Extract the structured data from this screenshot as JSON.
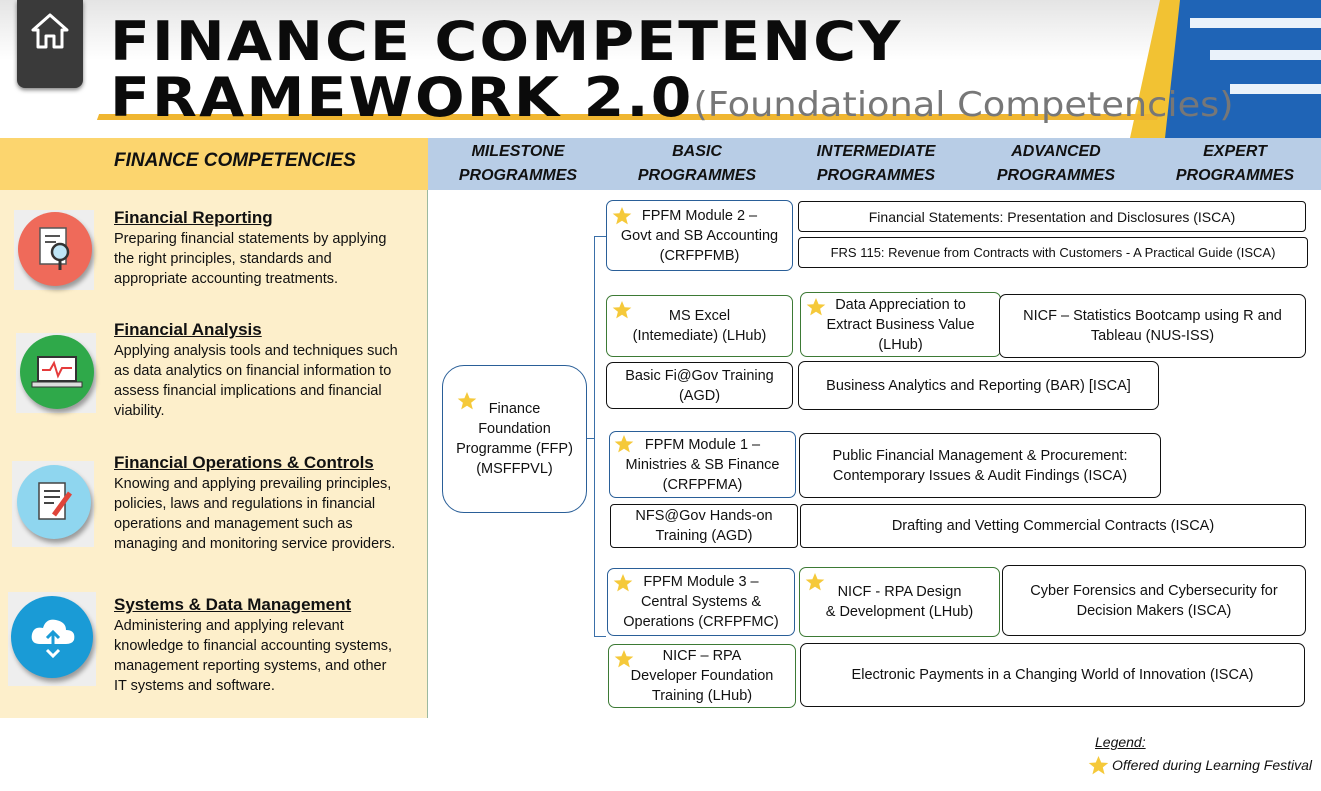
{
  "header": {
    "title_line1": "FINANCE COMPETENCY",
    "title_line2": "FRAMEWORK 2.0",
    "subtitle": "(Foundational Competencies)"
  },
  "columns": {
    "competencies": "FINANCE COMPETENCIES",
    "milestone": [
      "MILESTONE",
      "PROGRAMMES"
    ],
    "basic": [
      "BASIC",
      "PROGRAMMES"
    ],
    "intermediate": [
      "INTERMEDIATE",
      "PROGRAMMES"
    ],
    "advanced": [
      "ADVANCED",
      "PROGRAMMES"
    ],
    "expert": [
      "EXPERT",
      "PROGRAMMES"
    ]
  },
  "competencies": [
    {
      "title": "Financial Reporting",
      "lines": [
        "Preparing financial statements by applying",
        "the right principles, standards and",
        "appropriate accounting treatments."
      ],
      "icon": "report-magnifier-icon",
      "color": "#ef6a5a"
    },
    {
      "title": "Financial Analysis",
      "lines": [
        "Applying analysis tools and techniques such",
        "as data analytics on financial information to",
        "assess financial implications and financial",
        "viability."
      ],
      "icon": "laptop-chart-icon",
      "color": "#2fa94a"
    },
    {
      "title": "Financial Operations & Controls",
      "lines": [
        "Knowing and applying prevailing principles,",
        "policies, laws and regulations in financial",
        "operations and management such as",
        "managing and monitoring service providers."
      ],
      "icon": "document-pen-icon",
      "color": "#8fd6ef"
    },
    {
      "title": "Systems & Data Management",
      "lines": [
        "Administering and applying relevant",
        "knowledge to financial accounting systems,",
        "management reporting systems, and other",
        "IT systems and software."
      ],
      "icon": "cloud-upload-icon",
      "color": "#1a9bd6"
    }
  ],
  "milestone": {
    "lines": [
      "Finance",
      "Foundation",
      "Programme (FFP)",
      "(MSFFPVL)"
    ],
    "star": true
  },
  "boxes": {
    "fpfm2": {
      "lines": [
        "FPFM Module 2 –",
        "Govt and SB Accounting",
        "(CRFPFMB)"
      ],
      "star": true
    },
    "fin_statements": {
      "lines": [
        "Financial Statements: Presentation and Disclosures (ISCA)"
      ]
    },
    "frs115": {
      "lines": [
        "FRS 115: Revenue from Contracts with Customers - A Practical Guide (ISCA)"
      ]
    },
    "ms_excel": {
      "lines": [
        "MS Excel",
        "(Intemediate) (LHub)"
      ],
      "star": true
    },
    "data_appreciation": {
      "lines": [
        "Data Appreciation to",
        "Extract Business Value",
        "(LHub)"
      ],
      "star": true
    },
    "nicf_stats": {
      "lines": [
        "NICF – Statistics Bootcamp using R and",
        "Tableau (NUS-ISS)"
      ]
    },
    "basic_figov": {
      "lines": [
        "Basic Fi@Gov Training",
        "(AGD)"
      ]
    },
    "bar": {
      "lines": [
        "Business Analytics and Reporting (BAR) [ISCA]"
      ]
    },
    "fpfm1": {
      "lines": [
        "FPFM Module 1 –",
        "Ministries & SB Finance",
        "(CRFPFMA)"
      ],
      "star": true
    },
    "pfm": {
      "lines": [
        "Public Financial Management & Procurement:",
        "Contemporary Issues & Audit Findings (ISCA)"
      ]
    },
    "nfs_gov": {
      "lines": [
        "NFS@Gov Hands-on",
        "Training (AGD)"
      ]
    },
    "drafting": {
      "lines": [
        "Drafting and Vetting Commercial Contracts (ISCA)"
      ]
    },
    "fpfm3": {
      "lines": [
        "FPFM Module 3 –",
        "Central Systems &",
        "Operations (CRFPFMC)"
      ],
      "star": true
    },
    "nicf_rpa": {
      "lines": [
        "NICF - RPA Design",
        "& Development (LHub)"
      ],
      "star": true
    },
    "cyber": {
      "lines": [
        "Cyber Forensics and Cybersecurity for",
        "Decision Makers (ISCA)"
      ]
    },
    "nicf_rpa_dev": {
      "lines": [
        "NICF – RPA",
        "Developer Foundation",
        "Training (LHub)"
      ],
      "star": true
    },
    "epayments": {
      "lines": [
        "Electronic Payments in a Changing World of Innovation (ISCA)"
      ]
    }
  },
  "legend": {
    "title": "Legend:",
    "star_label": "Offered during Learning Festival"
  },
  "colors": {
    "band_left": "#fcd56e",
    "band_right": "#b8cde6",
    "panel": "#fdefcb",
    "star": "#f5c93a",
    "header_yellow": "#f2c233",
    "header_blue": "#1f64b6"
  }
}
